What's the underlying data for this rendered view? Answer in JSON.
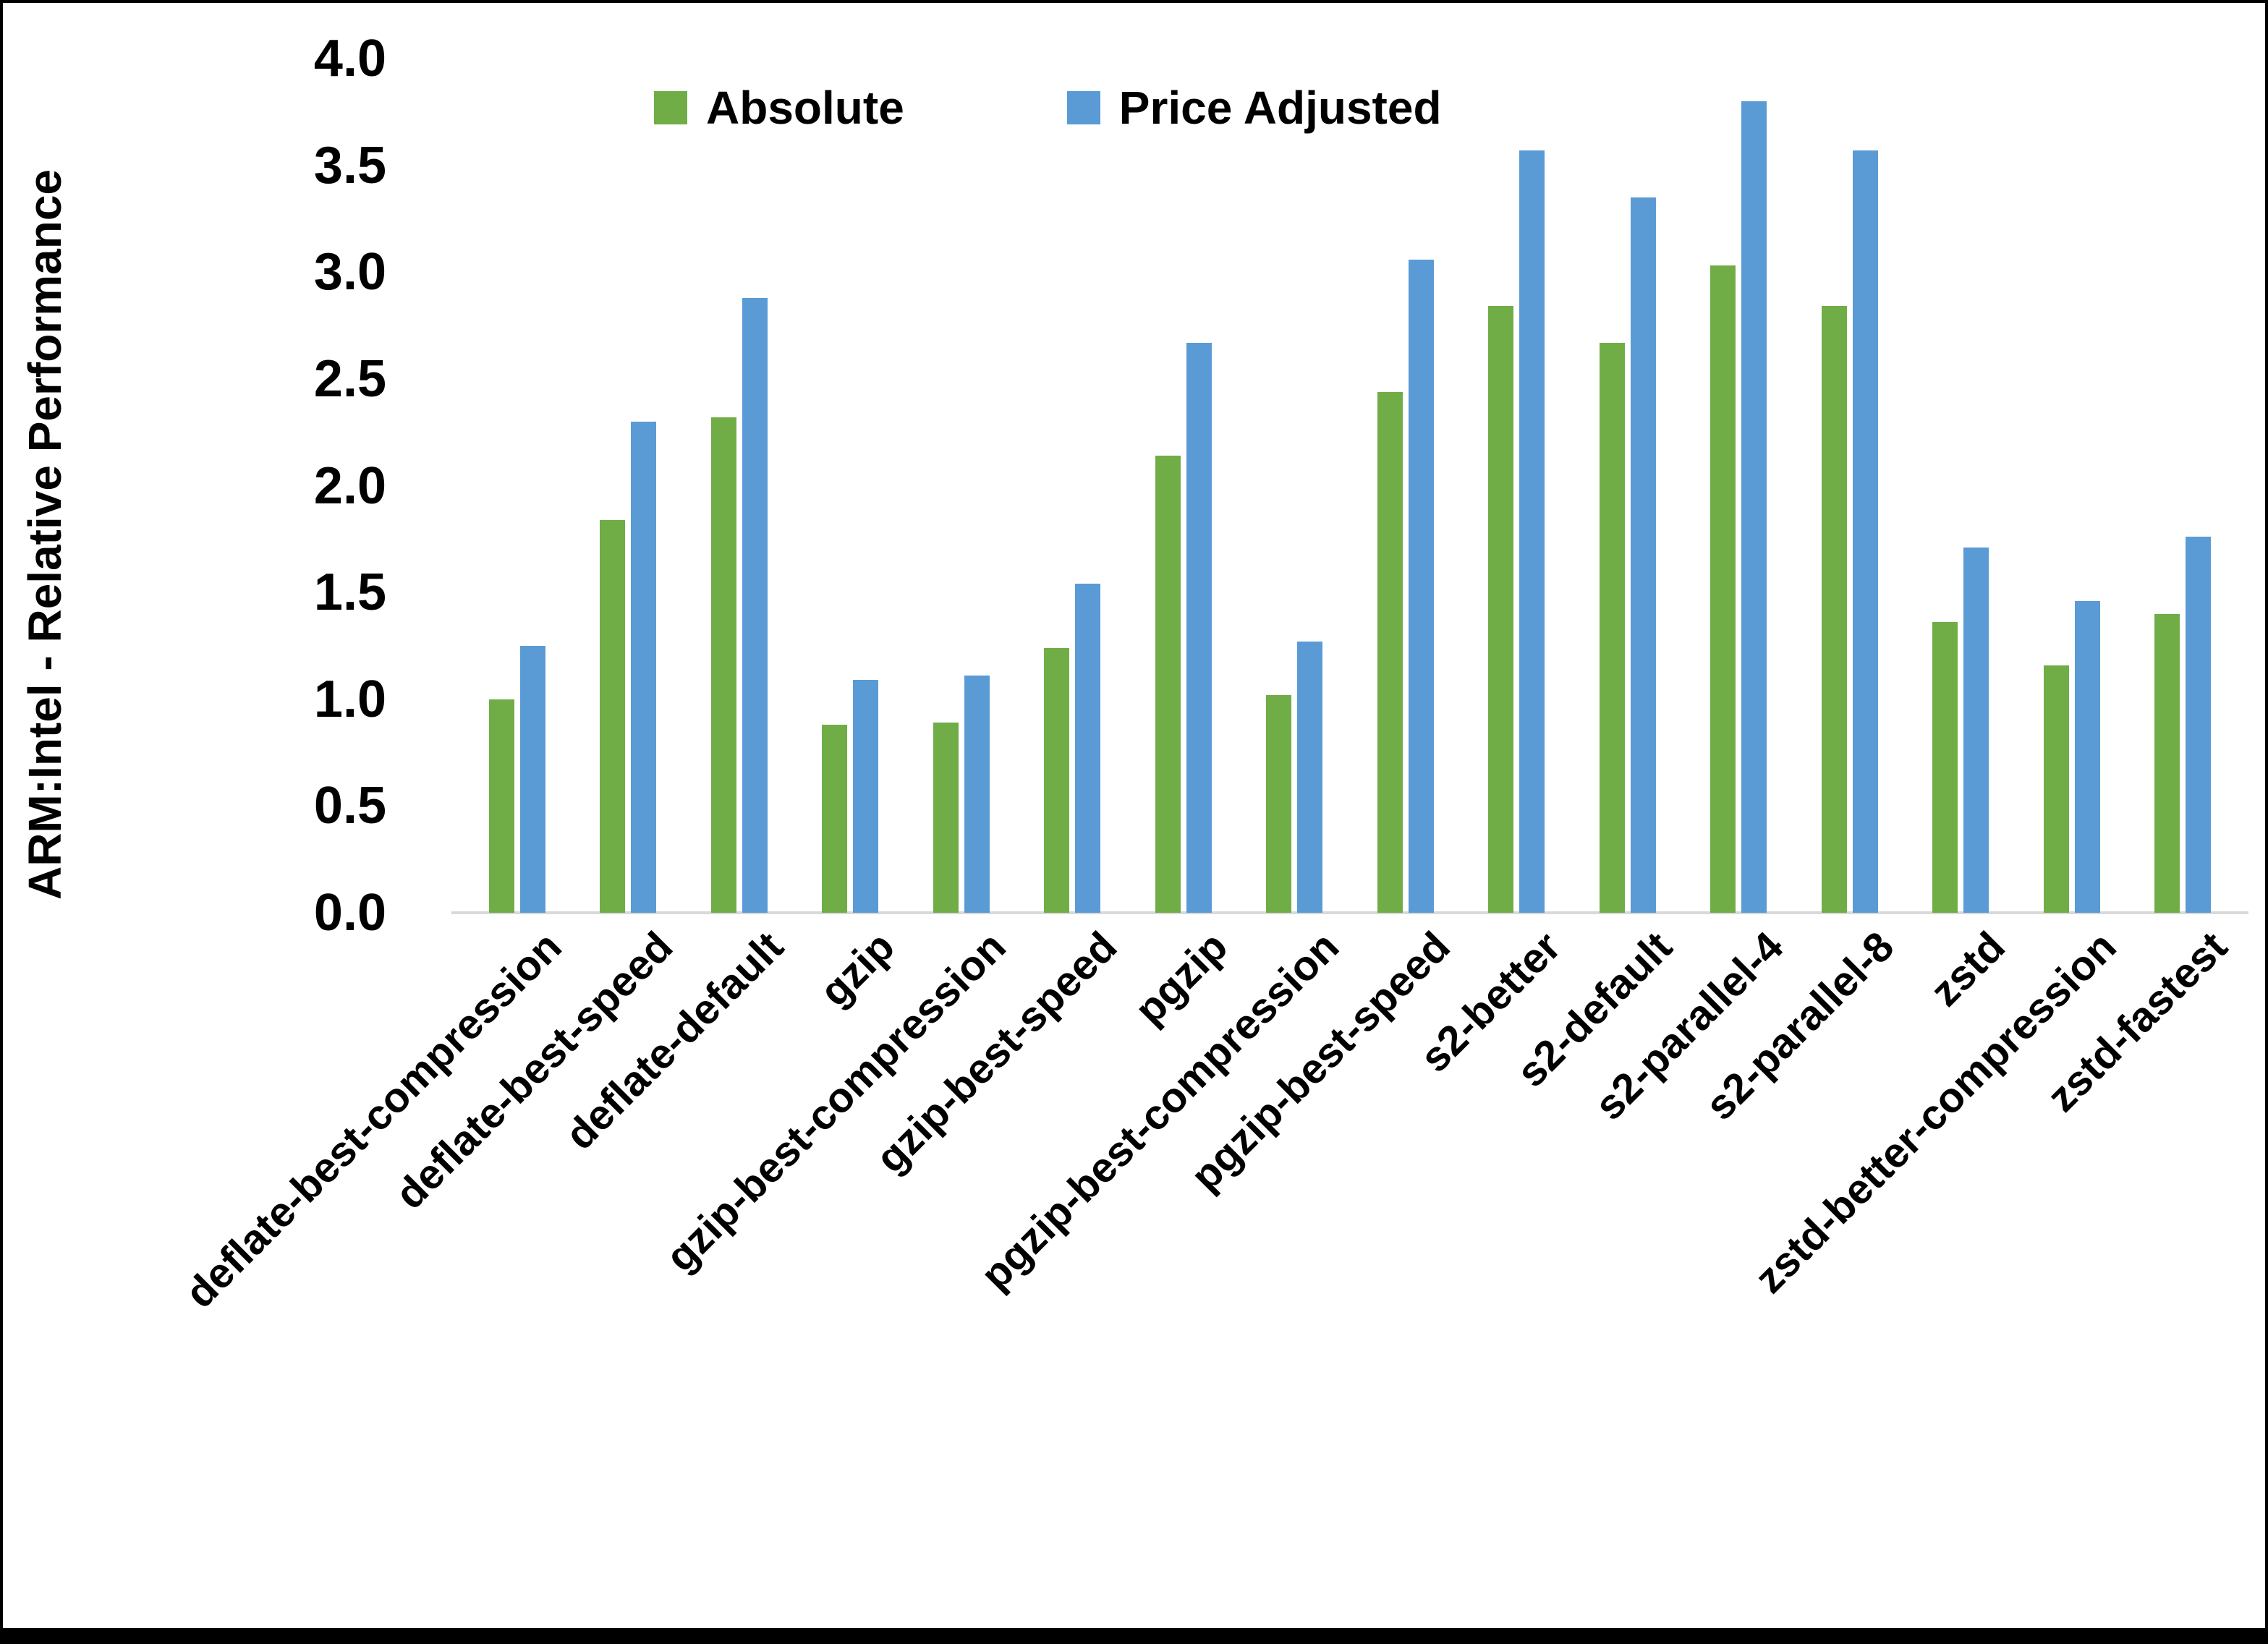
{
  "chart_data": {
    "type": "bar",
    "title": "",
    "xlabel": "",
    "ylabel": "ARM:Intel - Relative Performance",
    "ylim": [
      0.0,
      4.0
    ],
    "ytick_step": 0.5,
    "yticks": [
      "0.0",
      "0.5",
      "1.0",
      "1.5",
      "2.0",
      "2.5",
      "3.0",
      "3.5",
      "4.0"
    ],
    "grid": false,
    "legend_position": "top-center",
    "background_color": "#ffffff",
    "axis_line_color": "#d9d9d9",
    "frame_border_color": "#000000",
    "categories": [
      "deflate-best-compression",
      "deflate-best-speed",
      "deflate-default",
      "gzip",
      "gzip-best-compression",
      "gzip-best-speed",
      "pgzip",
      "pgzip-best-compression",
      "pgzip-best-speed",
      "s2-better",
      "s2-default",
      "s2-parallel-4",
      "s2-parallel-8",
      "zstd",
      "zstd-better-compression",
      "zstd-fastest"
    ],
    "series": [
      {
        "name": "Absolute",
        "color": "#70AD47",
        "values": [
          1.0,
          1.84,
          2.32,
          0.88,
          0.89,
          1.24,
          2.14,
          1.02,
          2.44,
          2.84,
          2.67,
          3.03,
          2.84,
          1.36,
          1.16,
          1.4
        ]
      },
      {
        "name": "Price Adjusted",
        "color": "#5B9BD5",
        "values": [
          1.25,
          2.3,
          2.88,
          1.09,
          1.11,
          1.54,
          2.67,
          1.27,
          3.06,
          3.57,
          3.35,
          3.8,
          3.57,
          1.71,
          1.46,
          1.76
        ]
      }
    ]
  }
}
